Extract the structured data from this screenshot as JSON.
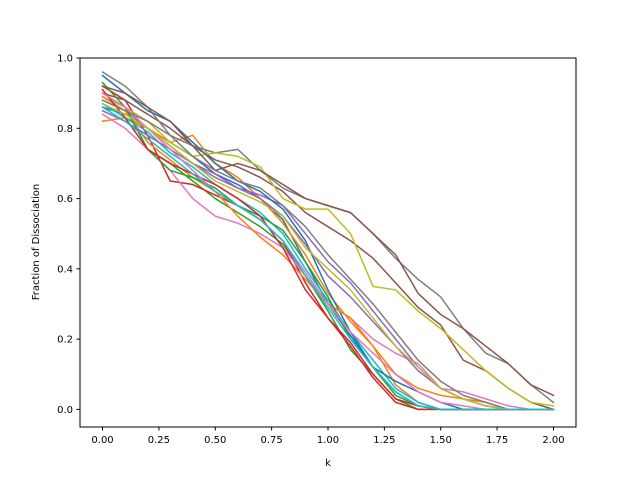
{
  "chart_data": {
    "type": "line",
    "title": "",
    "xlabel": "k",
    "ylabel": "Fraction of Dissociation",
    "xlim": [
      -0.1,
      2.1
    ],
    "ylim": [
      -0.05,
      1.0
    ],
    "xticks": [
      0.0,
      0.25,
      0.5,
      0.75,
      1.0,
      1.25,
      1.5,
      1.75,
      2.0
    ],
    "xtick_labels": [
      "0.00",
      "0.25",
      "0.50",
      "0.75",
      "1.00",
      "1.25",
      "1.50",
      "1.75",
      "2.00"
    ],
    "yticks": [
      0.0,
      0.2,
      0.4,
      0.6,
      0.8,
      1.0
    ],
    "ytick_labels": [
      "0.0",
      "0.2",
      "0.4",
      "0.6",
      "0.8",
      "1.0"
    ],
    "grid": false,
    "legend": "none",
    "x": [
      0.0,
      0.1,
      0.2,
      0.3,
      0.4,
      0.5,
      0.6,
      0.7,
      0.8,
      0.9,
      1.0,
      1.1,
      1.2,
      1.3,
      1.4,
      1.5,
      1.6,
      1.7,
      1.8,
      1.9,
      2.0
    ],
    "series": [
      {
        "color": "#1f77b4",
        "values": [
          0.86,
          0.84,
          0.8,
          0.76,
          0.72,
          0.67,
          0.64,
          0.6,
          0.54,
          0.42,
          0.3,
          0.21,
          0.12,
          0.05,
          0.01,
          0.0,
          0.0,
          0.0,
          0.0,
          0.0,
          0.0
        ]
      },
      {
        "color": "#ff7f0e",
        "values": [
          0.82,
          0.83,
          0.8,
          0.76,
          0.78,
          0.7,
          0.66,
          0.6,
          0.53,
          0.44,
          0.33,
          0.25,
          0.18,
          0.07,
          0.02,
          0.0,
          0.0,
          0.0,
          0.0,
          0.0,
          0.0
        ]
      },
      {
        "color": "#2ca02c",
        "values": [
          0.9,
          0.86,
          0.74,
          0.7,
          0.65,
          0.6,
          0.56,
          0.52,
          0.47,
          0.38,
          0.28,
          0.17,
          0.1,
          0.03,
          0.0,
          0.0,
          0.0,
          0.0,
          0.0,
          0.0,
          0.0
        ]
      },
      {
        "color": "#d62728",
        "values": [
          0.92,
          0.88,
          0.78,
          0.65,
          0.64,
          0.61,
          0.58,
          0.54,
          0.48,
          0.36,
          0.26,
          0.18,
          0.09,
          0.02,
          0.0,
          0.0,
          0.0,
          0.0,
          0.0,
          0.0,
          0.0
        ]
      },
      {
        "color": "#9467bd",
        "values": [
          0.88,
          0.85,
          0.8,
          0.75,
          0.7,
          0.66,
          0.63,
          0.61,
          0.58,
          0.5,
          0.42,
          0.36,
          0.28,
          0.2,
          0.12,
          0.06,
          0.03,
          0.01,
          0.0,
          0.0,
          0.0
        ]
      },
      {
        "color": "#8c564b",
        "values": [
          0.9,
          0.88,
          0.84,
          0.8,
          0.75,
          0.71,
          0.69,
          0.66,
          0.62,
          0.56,
          0.52,
          0.48,
          0.43,
          0.36,
          0.29,
          0.24,
          0.14,
          0.11,
          0.06,
          0.02,
          0.0
        ]
      },
      {
        "color": "#e377c2",
        "values": [
          0.84,
          0.8,
          0.74,
          0.68,
          0.6,
          0.55,
          0.53,
          0.5,
          0.46,
          0.38,
          0.3,
          0.26,
          0.2,
          0.16,
          0.13,
          0.06,
          0.05,
          0.03,
          0.01,
          0.0,
          0.0
        ]
      },
      {
        "color": "#7f7f7f",
        "values": [
          0.96,
          0.92,
          0.86,
          0.78,
          0.75,
          0.73,
          0.74,
          0.68,
          0.63,
          0.6,
          0.58,
          0.56,
          0.5,
          0.43,
          0.37,
          0.32,
          0.23,
          0.16,
          0.13,
          0.07,
          0.02
        ]
      },
      {
        "color": "#bcbd22",
        "values": [
          0.89,
          0.86,
          0.82,
          0.76,
          0.72,
          0.73,
          0.72,
          0.69,
          0.6,
          0.57,
          0.57,
          0.5,
          0.35,
          0.34,
          0.28,
          0.23,
          0.17,
          0.11,
          0.06,
          0.02,
          0.01
        ]
      },
      {
        "color": "#17becf",
        "values": [
          0.87,
          0.83,
          0.79,
          0.73,
          0.69,
          0.64,
          0.6,
          0.56,
          0.5,
          0.4,
          0.31,
          0.22,
          0.14,
          0.06,
          0.02,
          0.0,
          0.0,
          0.0,
          0.0,
          0.0,
          0.0
        ]
      },
      {
        "color": "#1f77b4",
        "values": [
          0.95,
          0.9,
          0.85,
          0.82,
          0.76,
          0.7,
          0.65,
          0.62,
          0.57,
          0.48,
          0.34,
          0.22,
          0.12,
          0.08,
          0.05,
          0.02,
          0.0,
          0.0,
          0.0,
          0.0,
          0.0
        ]
      },
      {
        "color": "#ff7f0e",
        "values": [
          0.89,
          0.85,
          0.76,
          0.71,
          0.66,
          0.62,
          0.55,
          0.49,
          0.44,
          0.37,
          0.3,
          0.26,
          0.18,
          0.1,
          0.06,
          0.04,
          0.03,
          0.02,
          0.0,
          0.0,
          0.0
        ]
      },
      {
        "color": "#2ca02c",
        "values": [
          0.93,
          0.86,
          0.74,
          0.68,
          0.66,
          0.63,
          0.58,
          0.55,
          0.51,
          0.42,
          0.32,
          0.2,
          0.12,
          0.04,
          0.01,
          0.0,
          0.0,
          0.0,
          0.0,
          0.0,
          0.0
        ]
      },
      {
        "color": "#d62728",
        "values": [
          0.91,
          0.83,
          0.74,
          0.7,
          0.67,
          0.64,
          0.6,
          0.55,
          0.46,
          0.34,
          0.26,
          0.19,
          0.1,
          0.03,
          0.01,
          0.0,
          0.0,
          0.0,
          0.0,
          0.0,
          0.0
        ]
      },
      {
        "color": "#9467bd",
        "values": [
          0.85,
          0.82,
          0.78,
          0.74,
          0.7,
          0.67,
          0.63,
          0.6,
          0.55,
          0.47,
          0.38,
          0.32,
          0.25,
          0.18,
          0.11,
          0.06,
          0.03,
          0.01,
          0.0,
          0.0,
          0.0
        ]
      },
      {
        "color": "#8c564b",
        "values": [
          0.92,
          0.9,
          0.86,
          0.82,
          0.75,
          0.68,
          0.7,
          0.68,
          0.64,
          0.6,
          0.58,
          0.56,
          0.5,
          0.44,
          0.33,
          0.27,
          0.23,
          0.18,
          0.13,
          0.07,
          0.04
        ]
      },
      {
        "color": "#e377c2",
        "values": [
          0.9,
          0.86,
          0.8,
          0.74,
          0.68,
          0.62,
          0.58,
          0.54,
          0.48,
          0.39,
          0.3,
          0.22,
          0.16,
          0.1,
          0.05,
          0.02,
          0.01,
          0.0,
          0.0,
          0.0,
          0.0
        ]
      },
      {
        "color": "#7f7f7f",
        "values": [
          0.88,
          0.85,
          0.82,
          0.78,
          0.72,
          0.68,
          0.65,
          0.63,
          0.58,
          0.52,
          0.44,
          0.37,
          0.3,
          0.22,
          0.14,
          0.08,
          0.04,
          0.02,
          0.0,
          0.0,
          0.0
        ]
      },
      {
        "color": "#bcbd22",
        "values": [
          0.87,
          0.84,
          0.8,
          0.75,
          0.7,
          0.65,
          0.62,
          0.59,
          0.55,
          0.46,
          0.4,
          0.34,
          0.26,
          0.18,
          0.12,
          0.06,
          0.03,
          0.01,
          0.0,
          0.0,
          0.0
        ]
      },
      {
        "color": "#17becf",
        "values": [
          0.86,
          0.82,
          0.77,
          0.72,
          0.67,
          0.62,
          0.58,
          0.54,
          0.48,
          0.38,
          0.29,
          0.2,
          0.12,
          0.05,
          0.01,
          0.0,
          0.0,
          0.0,
          0.0,
          0.0,
          0.0
        ]
      }
    ]
  }
}
